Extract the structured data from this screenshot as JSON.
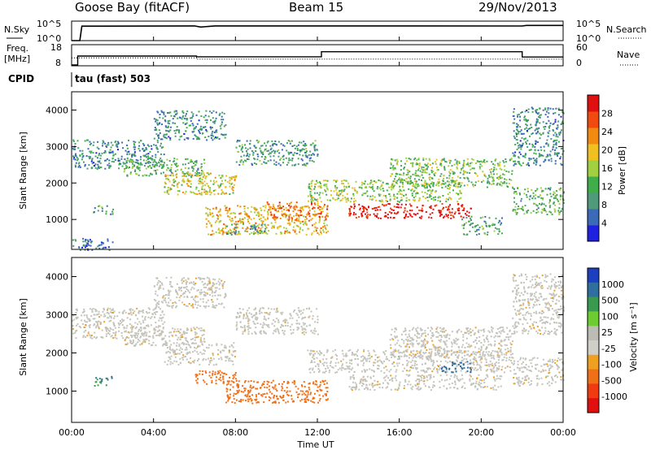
{
  "header": {
    "station": "Goose Bay (fitACF)",
    "beam": "Beam 15",
    "date": "29/Nov/2013"
  },
  "panels": {
    "nsky": {
      "left_label": "N.Sky",
      "right_label": "N.Search",
      "left_ticks": [
        "10^5",
        "10^0"
      ],
      "right_ticks": [
        "10^5",
        "10^0"
      ]
    },
    "freq": {
      "left_label_top": "Freq.",
      "left_label_bottom": "[MHz]",
      "right_label": "Nave",
      "left_ticks": [
        "18",
        "8"
      ],
      "right_ticks": [
        "60",
        "0"
      ]
    },
    "cpid": {
      "label": "CPID",
      "value": "tau (fast) 503"
    }
  },
  "colors": {
    "power_scale": [
      "#2020e0",
      "#3a6ab8",
      "#4f9a7a",
      "#3fae4a",
      "#a0d040",
      "#f0c020",
      "#f08a10",
      "#f04a10",
      "#e01010"
    ],
    "velocity_scale": [
      "#1c3fbf",
      "#2f6fa0",
      "#3a9a50",
      "#6ccc30",
      "#bcbcb4",
      "#cfcfc8",
      "#f0a020",
      "#f07018",
      "#f03a10",
      "#e01010"
    ],
    "ground_scatter": "#c4c4bc"
  },
  "chart_data": [
    {
      "type": "line",
      "title": "N.Sky / N.Search",
      "xlabel": "",
      "ylabel": "",
      "x_ticks": [
        "00:00",
        "04:00",
        "08:00",
        "12:00",
        "16:00",
        "20:00",
        "00:00"
      ],
      "log_scale": true,
      "ylim": [
        1,
        100000
      ],
      "series": [
        {
          "name": "N.Sky",
          "style": "solid",
          "x_hours": [
            0,
            0.4,
            0.5,
            6,
            6.3,
            7,
            22,
            22.2,
            24
          ],
          "values": [
            1,
            1,
            5000,
            6000,
            3000,
            6000,
            5500,
            8000,
            8000
          ]
        },
        {
          "name": "N.Search",
          "style": "dotted",
          "x_hours": [
            0,
            24
          ],
          "values": [
            1,
            1
          ]
        }
      ]
    },
    {
      "type": "line",
      "title": "Freq. / Nave",
      "xlabel": "",
      "ylabel": "",
      "x_ticks": [
        "00:00",
        "04:00",
        "08:00",
        "12:00",
        "16:00",
        "20:00",
        "00:00"
      ],
      "ylim": [
        8,
        18
      ],
      "y2lim": [
        0,
        60
      ],
      "series": [
        {
          "name": "Freq. [MHz]",
          "style": "solid",
          "x_hours": [
            0,
            0.3,
            0.3,
            6.1,
            6.1,
            12.2,
            12.2,
            22,
            22,
            24
          ],
          "values": [
            8,
            8,
            12.6,
            12.6,
            12.2,
            12.2,
            14.8,
            14.8,
            12.1,
            12.1
          ]
        },
        {
          "name": "Nave",
          "style": "dotted",
          "x_hours": [
            0,
            6.1,
            6.1,
            12.2,
            12.2,
            22,
            22,
            24
          ],
          "values": [
            22,
            22,
            18,
            18,
            18,
            18,
            18,
            18
          ]
        }
      ]
    },
    {
      "type": "heatmap",
      "title": "Power",
      "xlabel": "",
      "ylabel": "Slant Range [km]",
      "x_ticks": [
        "00:00",
        "04:00",
        "08:00",
        "12:00",
        "16:00",
        "20:00",
        "00:00"
      ],
      "y_ticks": [
        1000,
        2000,
        3000,
        4000
      ],
      "ylim": [
        180,
        4500
      ],
      "colorbar_label": "Power [dB]",
      "colorbar_ticks": [
        4,
        8,
        12,
        16,
        20,
        24,
        28
      ],
      "colorbar_range": [
        0,
        30
      ],
      "regions": [
        {
          "t": [
            0.0,
            4.5
          ],
          "r": [
            2400,
            3200
          ],
          "power": 8
        },
        {
          "t": [
            0.0,
            2.0
          ],
          "r": [
            180,
            500
          ],
          "power": 6
        },
        {
          "t": [
            1.0,
            2.0
          ],
          "r": [
            1150,
            1400
          ],
          "power": 9
        },
        {
          "t": [
            2.5,
            6.5
          ],
          "r": [
            2200,
            2700
          ],
          "power": 11
        },
        {
          "t": [
            4.5,
            8.0
          ],
          "r": [
            1700,
            2300
          ],
          "power": 17
        },
        {
          "t": [
            4.0,
            7.5
          ],
          "r": [
            3200,
            4000
          ],
          "power": 8
        },
        {
          "t": [
            6.5,
            12.5
          ],
          "r": [
            600,
            1400
          ],
          "power": 19
        },
        {
          "t": [
            7.5,
            9.5
          ],
          "r": [
            600,
            900
          ],
          "power": 10
        },
        {
          "t": [
            9.5,
            12.5
          ],
          "r": [
            1000,
            1500
          ],
          "power": 23
        },
        {
          "t": [
            8.0,
            12.0
          ],
          "r": [
            2500,
            3200
          ],
          "power": 9
        },
        {
          "t": [
            11.5,
            19.0
          ],
          "r": [
            1500,
            2100
          ],
          "power": 14
        },
        {
          "t": [
            13.5,
            19.5
          ],
          "r": [
            1050,
            1450
          ],
          "power": 29
        },
        {
          "t": [
            15.5,
            21.5
          ],
          "r": [
            1900,
            2700
          ],
          "power": 13
        },
        {
          "t": [
            19.0,
            21.0
          ],
          "r": [
            600,
            1100
          ],
          "power": 10
        },
        {
          "t": [
            21.5,
            24.0
          ],
          "r": [
            1150,
            1900
          ],
          "power": 11
        },
        {
          "t": [
            21.5,
            24.0
          ],
          "r": [
            2500,
            4100
          ],
          "power": 8
        }
      ]
    },
    {
      "type": "heatmap",
      "title": "Velocity",
      "xlabel": "Time UT",
      "ylabel": "Slant Range [km]",
      "x_ticks": [
        "00:00",
        "04:00",
        "08:00",
        "12:00",
        "16:00",
        "20:00",
        "00:00"
      ],
      "y_ticks": [
        1000,
        2000,
        3000,
        4000
      ],
      "ylim": [
        180,
        4500
      ],
      "colorbar_label": "Velocity [m s⁻¹]",
      "colorbar_ticks": [
        "1000",
        "500",
        "100",
        "25",
        "-25",
        "-100",
        "-500",
        "-1000"
      ],
      "regions": [
        {
          "t": [
            0.0,
            4.5
          ],
          "r": [
            2400,
            3200
          ],
          "velocity": 0,
          "ground": true
        },
        {
          "t": [
            1.0,
            2.0
          ],
          "r": [
            1150,
            1400
          ],
          "velocity": 300
        },
        {
          "t": [
            2.5,
            6.5
          ],
          "r": [
            2200,
            2700
          ],
          "velocity": 0,
          "ground": true
        },
        {
          "t": [
            4.5,
            8.0
          ],
          "r": [
            1700,
            2300
          ],
          "velocity": 0,
          "ground": true
        },
        {
          "t": [
            4.0,
            7.5
          ],
          "r": [
            3200,
            4000
          ],
          "velocity": 0,
          "ground": true
        },
        {
          "t": [
            6.0,
            8.0
          ],
          "r": [
            1200,
            1550
          ],
          "velocity": -150
        },
        {
          "t": [
            7.5,
            12.5
          ],
          "r": [
            700,
            1300
          ],
          "velocity": -150
        },
        {
          "t": [
            8.0,
            12.0
          ],
          "r": [
            2500,
            3200
          ],
          "velocity": 0,
          "ground": true
        },
        {
          "t": [
            11.5,
            21.5
          ],
          "r": [
            1500,
            2100
          ],
          "velocity": 0,
          "ground": true
        },
        {
          "t": [
            13.5,
            21.0
          ],
          "r": [
            1050,
            1450
          ],
          "velocity": 0,
          "ground": true
        },
        {
          "t": [
            15.5,
            21.5
          ],
          "r": [
            1900,
            2700
          ],
          "velocity": 0,
          "ground": true
        },
        {
          "t": [
            18.0,
            19.5
          ],
          "r": [
            1500,
            1800
          ],
          "velocity": 600
        },
        {
          "t": [
            21.5,
            24.0
          ],
          "r": [
            1150,
            1900
          ],
          "velocity": 0,
          "ground": true
        },
        {
          "t": [
            21.5,
            24.0
          ],
          "r": [
            2500,
            4100
          ],
          "velocity": 0,
          "ground": true
        }
      ]
    }
  ]
}
